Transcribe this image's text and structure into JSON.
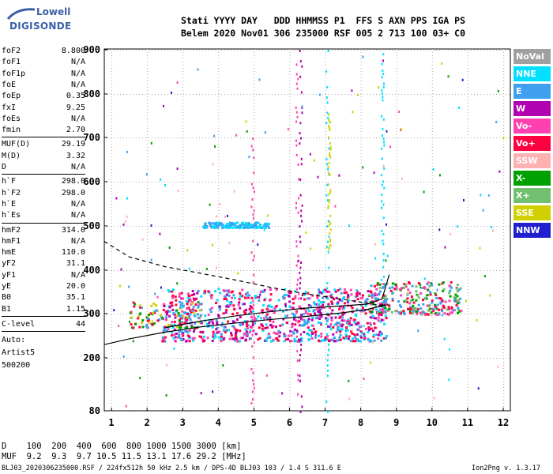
{
  "logo": {
    "line1": "Lowell",
    "line2": "DIGISONDE",
    "color": "#3a5fa6"
  },
  "header": {
    "labels": "Stati YYYY DAY   DDD HHMMSS P1  FFS S AXN PPS IGA PS",
    "values": "Belem 2020 Nov01 306 235000 RSF 005 2 713 100 03+ C0"
  },
  "params": {
    "group1": [
      {
        "key": "foF2",
        "val": "8.800"
      },
      {
        "key": "foF1",
        "val": "N/A"
      },
      {
        "key": "foF1p",
        "val": "N/A"
      },
      {
        "key": "foE",
        "val": "N/A"
      },
      {
        "key": "foEp",
        "val": "0.35"
      },
      {
        "key": "fxI",
        "val": "9.25"
      },
      {
        "key": "foEs",
        "val": "N/A"
      },
      {
        "key": "fmin",
        "val": "2.70"
      }
    ],
    "group2": [
      {
        "key": "MUF(D)",
        "val": "29.19"
      },
      {
        "key": "M(D)",
        "val": "3.32"
      },
      {
        "key": "D",
        "val": "N/A"
      }
    ],
    "group3": [
      {
        "key": "h`F",
        "val": "298.0"
      },
      {
        "key": "h`F2",
        "val": "298.0"
      },
      {
        "key": "h`E",
        "val": "N/A"
      },
      {
        "key": "h`Es",
        "val": "N/A"
      }
    ],
    "group4": [
      {
        "key": "hmF2",
        "val": "314.0"
      },
      {
        "key": "hmF1",
        "val": "N/A"
      },
      {
        "key": "hmE",
        "val": "110.0"
      },
      {
        "key": "yF2",
        "val": "31.1"
      },
      {
        "key": "yF1",
        "val": "N/A"
      },
      {
        "key": "yE",
        "val": "20.0"
      },
      {
        "key": "B0",
        "val": "35.1"
      },
      {
        "key": "B1",
        "val": "1.15"
      }
    ],
    "clevel": {
      "key": "C-level",
      "val": "44"
    },
    "auto": [
      "Auto:",
      "Artist5",
      "500200"
    ]
  },
  "legend": [
    {
      "label": "NoVal",
      "color": "#a0a0a0"
    },
    {
      "label": "NNE",
      "color": "#00e0ff"
    },
    {
      "label": "E",
      "color": "#40a0f0"
    },
    {
      "label": "W",
      "color": "#b000b0"
    },
    {
      "label": "Vo-",
      "color": "#ff40b0"
    },
    {
      "label": "Vo+",
      "color": "#ff0040"
    },
    {
      "label": "SSW",
      "color": "#ffb0b0"
    },
    {
      "label": "X-",
      "color": "#00a000"
    },
    {
      "label": "X+",
      "color": "#70c070"
    },
    {
      "label": "SSE",
      "color": "#d0d000"
    },
    {
      "label": "NNW",
      "color": "#2020d0"
    }
  ],
  "chart_data": {
    "type": "scatter",
    "xlim": [
      0.8,
      12.2
    ],
    "ylim": [
      80,
      900
    ],
    "xticks": [
      "1",
      "2",
      "3",
      "4",
      "5",
      "6",
      "7",
      "8",
      "9",
      "10",
      "11",
      "12"
    ],
    "yticks": [
      "80",
      "200",
      "300",
      "400",
      "500",
      "600",
      "700",
      "800",
      "900"
    ],
    "ytick_values": [
      80,
      200,
      300,
      400,
      500,
      600,
      700,
      800,
      900
    ],
    "grid": true,
    "traces": {
      "lower_virtual_height": [
        [
          0.8,
          230
        ],
        [
          1.5,
          243
        ],
        [
          2.5,
          258
        ],
        [
          3.5,
          270
        ],
        [
          4.5,
          279
        ],
        [
          5.5,
          287
        ],
        [
          6.5,
          294
        ],
        [
          7.5,
          302
        ],
        [
          8.2,
          310
        ],
        [
          8.7,
          320
        ]
      ],
      "o_trace_profile": [
        [
          2.5,
          268
        ],
        [
          3.5,
          283
        ],
        [
          4.5,
          295
        ],
        [
          5.5,
          305
        ],
        [
          6.5,
          313
        ],
        [
          7.5,
          318
        ],
        [
          8.2,
          322
        ],
        [
          8.6,
          334
        ],
        [
          8.8,
          390
        ]
      ],
      "dashed_profile": [
        [
          0.8,
          465
        ],
        [
          1.5,
          430
        ],
        [
          2.5,
          408
        ],
        [
          3.5,
          393
        ],
        [
          4.5,
          377
        ],
        [
          5.5,
          360
        ],
        [
          6.5,
          345
        ],
        [
          7.5,
          333
        ],
        [
          8.5,
          320
        ],
        [
          8.8,
          320
        ]
      ]
    },
    "echo_clusters": [
      {
        "fmin": 2.4,
        "fmax": 8.7,
        "hmin": 240,
        "hmax": 360,
        "colors": [
          "#ff0040",
          "#ff40b0",
          "#40a0f0",
          "#00e0ff",
          "#b000b0"
        ],
        "n": 900
      },
      {
        "fmin": 8.2,
        "fmax": 10.8,
        "hmin": 300,
        "hmax": 375,
        "colors": [
          "#ff0040",
          "#ff40b0",
          "#00a000",
          "#70c070",
          "#40a0f0"
        ],
        "n": 260
      },
      {
        "fmin": 3.5,
        "fmax": 5.4,
        "hmin": 498,
        "hmax": 510,
        "colors": [
          "#40a0f0",
          "#00e0ff"
        ],
        "n": 140
      },
      {
        "fmin": 1.5,
        "fmax": 3.5,
        "hmin": 270,
        "hmax": 330,
        "colors": [
          "#ff0040",
          "#00a000",
          "#d0d000",
          "#40a0f0"
        ],
        "n": 120
      }
    ],
    "vertical_streaks": [
      {
        "f": 6.3,
        "hmin": 80,
        "hmax": 900,
        "color": "#b000b0"
      },
      {
        "f": 7.05,
        "hmin": 80,
        "hmax": 900,
        "color": "#00e0ff"
      },
      {
        "f": 7.1,
        "hmin": 450,
        "hmax": 760,
        "color": "#d0d000"
      },
      {
        "f": 8.6,
        "hmin": 380,
        "hmax": 900,
        "color": "#00e0ff"
      },
      {
        "f": 6.2,
        "hmin": 120,
        "hmax": 880,
        "color": "#ff40b0"
      },
      {
        "f": 4.95,
        "hmin": 100,
        "hmax": 700,
        "color": "#ff40b0"
      }
    ]
  },
  "bottom": {
    "dline": "D    100  200  400  600  800 1000 1500 3000 [km]",
    "mufline": "MUF  9.2  9.3  9.7 10.5 11.5 13.1 17.6 29.2 [MHz]",
    "footer_left": "BLJ03_2020306235000.RSF / 224fx512h 50 kHz 2.5 km / DPS-4D BLJ03 103 / 1.4 S 311.6 E",
    "footer_right": "Ion2Png v. 1.3.17"
  }
}
